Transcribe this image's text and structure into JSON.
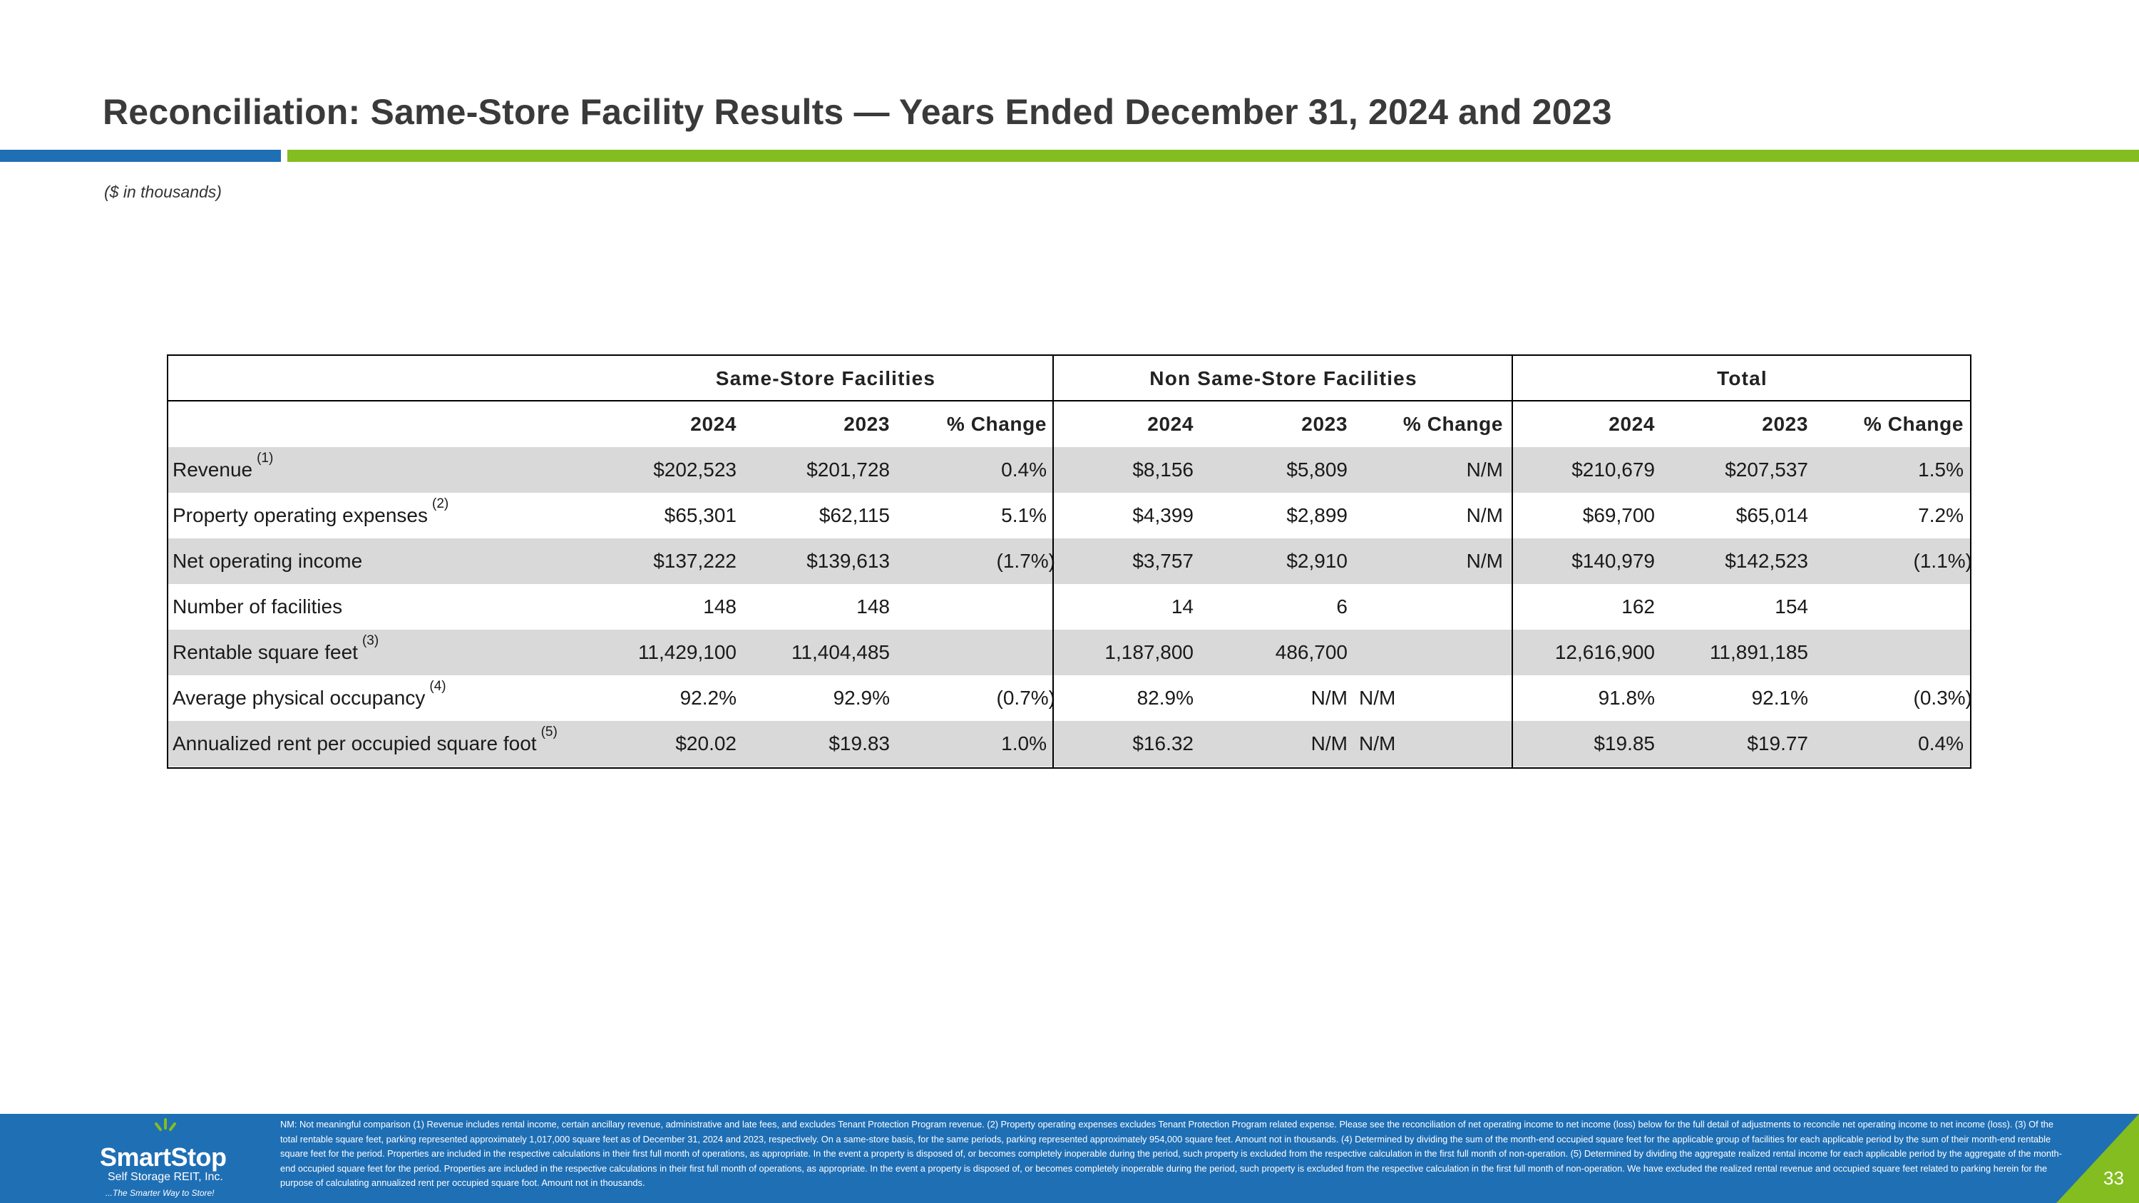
{
  "slide": {
    "title": "Reconciliation: Same-Store Facility Results — Years Ended December 31, 2024 and 2023",
    "subtitle": "($ in thousands)",
    "page_number": "33"
  },
  "colors": {
    "accent_blue": "#1f6fb5",
    "accent_green": "#84bd1f",
    "footer_blue": "#1f6fb5",
    "row_shade": "#d9d9d9"
  },
  "table": {
    "groups": [
      "Same-Store Facilities",
      "Non Same-Store Facilities",
      "Total"
    ],
    "columns": [
      "2024",
      "2023",
      "% Change",
      "2024",
      "2023",
      "% Change",
      "2024",
      "2023",
      "% Change"
    ],
    "rows": [
      {
        "label": "Revenue",
        "sup": "(1)",
        "cells": [
          "$202,523",
          "$201,728",
          "0.4%",
          "$8,156",
          "$5,809",
          "N/M",
          "$210,679",
          "$207,537",
          "1.5%"
        ]
      },
      {
        "label": "Property operating expenses",
        "sup": "(2)",
        "cells": [
          "$65,301",
          "$62,115",
          "5.1%",
          "$4,399",
          "$2,899",
          "N/M",
          "$69,700",
          "$65,014",
          "7.2%"
        ]
      },
      {
        "label": "Net operating income",
        "sup": "",
        "cells": [
          "$137,222",
          "$139,613",
          "(1.7%)",
          "$3,757",
          "$2,910",
          "N/M",
          "$140,979",
          "$142,523",
          "(1.1%)"
        ]
      },
      {
        "label": "Number of facilities",
        "sup": "",
        "cells": [
          "148",
          "148",
          "",
          "14",
          "6",
          "",
          "162",
          "154",
          ""
        ]
      },
      {
        "label": "Rentable square feet",
        "sup": "(3)",
        "cells": [
          "11,429,100",
          "11,404,485",
          "",
          "1,187,800",
          "486,700",
          "",
          "12,616,900",
          "11,891,185",
          ""
        ]
      },
      {
        "label": "Average physical occupancy",
        "sup": "(4)",
        "cells": [
          "92.2%",
          "92.9%",
          "(0.7%)",
          "82.9%",
          "N/M",
          "N/M",
          "91.8%",
          "92.1%",
          "(0.3%)"
        ]
      },
      {
        "label": "Annualized rent per occupied square foot",
        "sup": "(5)",
        "cells": [
          "$20.02",
          "$19.83",
          "1.0%",
          "$16.32",
          "N/M",
          "N/M",
          "$19.85",
          "$19.77",
          "0.4%"
        ]
      }
    ]
  },
  "footer": {
    "logo": {
      "name": "SmartStop",
      "subline": "Self Storage REIT, Inc.",
      "tagline": "...The Smarter Way to Store!"
    },
    "footnote": "NM: Not meaningful comparison  (1) Revenue includes rental income, certain ancillary revenue, administrative and late fees, and excludes Tenant Protection Program revenue. (2) Property operating expenses excludes Tenant Protection Program related expense. Please see the reconciliation of net operating income to net income (loss) below for the full detail of adjustments to reconcile net operating income to net income (loss). (3) Of the total rentable square feet, parking represented approximately 1,017,000 square feet as of December 31, 2024 and 2023, respectively. On a same-store basis, for the same periods, parking represented approximately 954,000 square feet. Amount not in thousands. (4) Determined by dividing the sum of the month-end occupied square feet for the applicable group of facilities for each applicable period by the sum of their month-end rentable square feet for the period.  Properties are included in the respective calculations in their first full month of operations, as appropriate. In the event a property is disposed of, or becomes completely inoperable during the period, such property is excluded from the respective calculation in the first full month of non-operation. (5) Determined by dividing the aggregate realized rental income for each applicable period by the aggregate of the month-end occupied square feet for the period. Properties are included in the respective calculations in their first full month of operations, as appropriate. In the event a property is disposed of, or becomes completely inoperable during the period, such property is excluded from the respective calculation in the first full month of non-operation. We have excluded the realized rental revenue and occupied square feet related to parking herein for the purpose of calculating annualized rent per occupied square foot. Amount not in thousands."
  }
}
